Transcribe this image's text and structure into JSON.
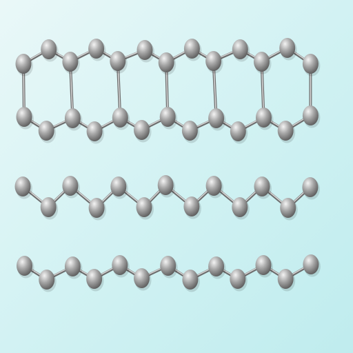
{
  "image": {
    "subject": "graphene-lattice",
    "background_colors": [
      "#eaf8f8",
      "#d2f2f3",
      "#bfecee"
    ],
    "atom_colors": {
      "highlight": "#f4f4f4",
      "mid": "#a9a9a9",
      "shadow": "#5a5a5a"
    },
    "bond_colors": {
      "light": "#d8d8d8",
      "dark": "#6e6e6e"
    }
  }
}
